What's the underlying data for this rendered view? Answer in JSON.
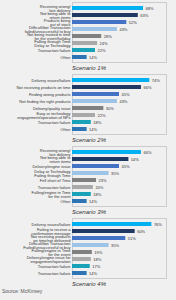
{
  "chart_data": [
    {
      "type": "bar",
      "orientation": "horizontal",
      "title": "Scenario 1%",
      "categories": [
        "Receiving wrong/\nlate delivery",
        "Not being able to\nreturn items",
        "Products being\nout of stock",
        "Difficult/bot Transaction\nfailed/unsuccessful to buy",
        "Not being trusted in time\nfor the event/holiday",
        "Falling through Time\nDelay or Technology",
        "Transaction failure",
        "Other"
      ],
      "values": [
        68,
        63,
        52,
        43,
        28,
        24,
        22,
        14
      ],
      "value_labels": [
        "68%",
        "63%",
        "52%",
        "43%",
        "28%",
        "24%",
        "22%",
        "14%"
      ],
      "colors": [
        "#00b0f0",
        "#1f3864",
        "#4472c4",
        "#9dc3e6",
        "#808080",
        "#a9a9a9",
        "#17a2b8",
        "#2e75b6"
      ],
      "xlim": [
        0,
        90
      ],
      "tick_labels": "y",
      "data_labels": true
    },
    {
      "type": "bar",
      "orientation": "horizontal",
      "title": "Scenario 2%",
      "categories": [
        "Delivery issues/failure",
        "Not receiving products on time",
        "Finding wrong products",
        "Not finding the right products",
        "Delivery/quality issue",
        "Easy or technology\nengagement/operation of NPs",
        "Transaction failure",
        "Other"
      ],
      "values": [
        74,
        66,
        45,
        43,
        30,
        22,
        18,
        14
      ],
      "value_labels": [
        "74%",
        "66%",
        "45%",
        "43%",
        "30%",
        "22%",
        "18%",
        "14%"
      ],
      "colors": [
        "#00b0f0",
        "#1f3864",
        "#4472c4",
        "#9dc3e6",
        "#808080",
        "#a9a9a9",
        "#17a2b8",
        "#2e75b6"
      ],
      "xlim": [
        0,
        90
      ],
      "tick_labels": "y",
      "data_labels": true
    },
    {
      "type": "bar",
      "orientation": "horizontal",
      "title": "Scenario 3%",
      "categories": [
        "Receiving wrong/\nlate delivery",
        "Not being able to\nreturn items",
        "Delivery/engine issue",
        "Delay or Technology\nFailing through Time",
        "Fell short of Time",
        "Transaction failure",
        "Falling/engine in Time\nfor the event",
        "Other"
      ],
      "values": [
        66,
        54,
        45,
        35,
        23,
        20,
        18,
        14
      ],
      "value_labels": [
        "66%",
        "54%",
        "45%",
        "35%",
        "23%",
        "20%",
        "18%",
        "14%"
      ],
      "colors": [
        "#00b0f0",
        "#1f3864",
        "#4472c4",
        "#9dc3e6",
        "#808080",
        "#a9a9a9",
        "#17a2b8",
        "#2e75b6"
      ],
      "xlim": [
        0,
        90
      ],
      "tick_labels": "y",
      "data_labels": true
    },
    {
      "type": "bar",
      "orientation": "horizontal",
      "title": "Scenario 4%",
      "categories": [
        "Delivery issues/failure",
        "Failing to receive a\nconfirmation message",
        "Not receiving products\non time/not delivered",
        "Difficult/bot Transaction\nFailed/unsuccessful to buy",
        "Falling/engine in Time\nfor the event",
        "Delivery/engine issue for\nengagement/operation",
        "Transaction failure",
        "Transaction failure"
      ],
      "values": [
        76,
        60,
        51,
        35,
        19,
        18,
        17,
        14
      ],
      "value_labels": [
        "76%",
        "60%",
        "51%",
        "35%",
        "19%",
        "18%",
        "17%",
        "14%"
      ],
      "colors": [
        "#00b0f0",
        "#1f3864",
        "#4472c4",
        "#9dc3e6",
        "#808080",
        "#a9a9a9",
        "#17a2b8",
        "#2e75b6"
      ],
      "xlim": [
        0,
        90
      ],
      "tick_labels": "y",
      "data_labels": true,
      "annotations": [
        "Source: McKinsey"
      ]
    }
  ]
}
